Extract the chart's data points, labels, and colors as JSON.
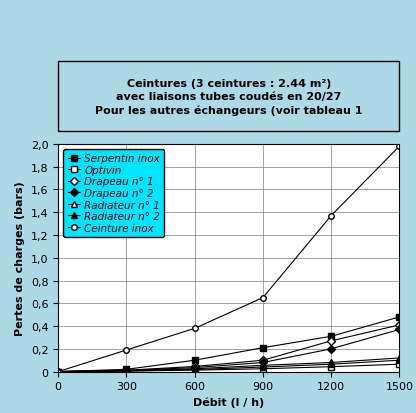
{
  "title_lines": [
    "Ceintures (3 ceintures : 2.44 m²)",
    "avec liaisons tubes coudés en 20/27",
    "Pour les autres échangeurs (voir tableau 1"
  ],
  "xlabel": "Débit (l / h)",
  "ylabel": "Pertes de charges (bars)",
  "xlim": [
    0,
    1500
  ],
  "ylim": [
    0,
    2
  ],
  "xticks": [
    0,
    300,
    600,
    900,
    1200,
    1500
  ],
  "yticks": [
    0,
    0.2,
    0.4,
    0.6,
    0.8,
    1.0,
    1.2,
    1.4,
    1.6,
    1.8,
    2.0
  ],
  "background_color": "#add8e6",
  "plot_background": "#ffffff",
  "grid_color": "#808080",
  "series": [
    {
      "label": "Serpentin inox",
      "x": [
        0,
        300,
        600,
        900,
        1200,
        1500
      ],
      "y": [
        0,
        0.02,
        0.1,
        0.21,
        0.31,
        0.48
      ],
      "color": "#000000",
      "marker": "s",
      "marker_filled": true,
      "linestyle": "-"
    },
    {
      "label": "Optivin",
      "x": [
        0,
        300,
        600,
        900,
        1200,
        1500
      ],
      "y": [
        0,
        0.005,
        0.013,
        0.025,
        0.043,
        0.065
      ],
      "color": "#000000",
      "marker": "s",
      "marker_filled": false,
      "linestyle": "-"
    },
    {
      "label": "Drapeau n° 1",
      "x": [
        0,
        300,
        600,
        900,
        1200,
        1500
      ],
      "y": [
        0,
        0.012,
        0.045,
        0.1,
        0.27,
        0.41
      ],
      "color": "#000000",
      "marker": "D",
      "marker_filled": false,
      "linestyle": "-"
    },
    {
      "label": "Drapeau n° 2",
      "x": [
        0,
        300,
        600,
        900,
        1200,
        1500
      ],
      "y": [
        0,
        0.01,
        0.035,
        0.08,
        0.2,
        0.37
      ],
      "color": "#000000",
      "marker": "D",
      "marker_filled": true,
      "linestyle": "-"
    },
    {
      "label": "Radiateur n° 1",
      "x": [
        0,
        300,
        600,
        900,
        1200,
        1500
      ],
      "y": [
        0,
        0.008,
        0.025,
        0.055,
        0.08,
        0.12
      ],
      "color": "#000000",
      "marker": "^",
      "marker_filled": false,
      "linestyle": "-"
    },
    {
      "label": "Radiateur n° 2",
      "x": [
        0,
        300,
        600,
        900,
        1200,
        1500
      ],
      "y": [
        0,
        0.005,
        0.018,
        0.04,
        0.065,
        0.1
      ],
      "color": "#000000",
      "marker": "^",
      "marker_filled": true,
      "linestyle": "-"
    },
    {
      "label": "Ceinture inox",
      "x": [
        0,
        300,
        600,
        900,
        1200,
        1500
      ],
      "y": [
        0,
        0.19,
        0.38,
        0.65,
        1.37,
        1.98
      ],
      "color": "#000000",
      "marker": "o",
      "marker_filled": false,
      "linestyle": "-"
    }
  ],
  "legend_bg": "#00e5ff",
  "title_bg": "#c0c0c0",
  "title_fontsize": 8,
  "axis_fontsize": 8,
  "tick_fontsize": 8,
  "legend_fontsize": 7.5
}
